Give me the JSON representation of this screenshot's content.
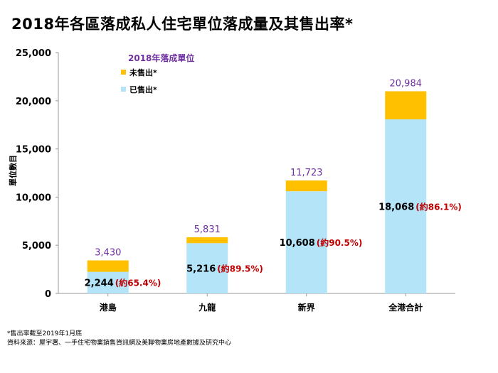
{
  "title": "2018年各區落成私人住宅單位落成量及其售出率*",
  "footnotes": [
    "*售出率截至2019年1月底",
    "資料來源：屋宇署、一手住宅物業銷售資訊網及美聯物業房地產數據及研究中心"
  ],
  "chart_data": {
    "type": "bar",
    "stacked": true,
    "title": "2018年各區落成私人住宅單位落成量及其售出率*",
    "legend_title": "2018年落成單位",
    "legend_position": "top-left",
    "categories": [
      "港島",
      "九龍",
      "新界",
      "全港合計"
    ],
    "series": [
      {
        "name": "已售出*",
        "color": "#B4E4F8",
        "values": [
          2244,
          5216,
          10608,
          18068
        ]
      },
      {
        "name": "未售出*",
        "color": "#FFC000",
        "values": [
          1186,
          615,
          1115,
          2916
        ]
      }
    ],
    "totals": [
      3430,
      5831,
      11723,
      20984
    ],
    "total_labels": [
      "3,430",
      "5,831",
      "11,723",
      "20,984"
    ],
    "sold_labels": [
      "2,244",
      "5,216",
      "10,608",
      "18,068"
    ],
    "pct_labels": [
      "(約65.4%)",
      "(約89.5%)",
      "(約90.5%)",
      "(約86.1%)"
    ],
    "ylabel": "單位數目",
    "xlabel": "",
    "ylim": [
      0,
      25000
    ],
    "yticks": [
      0,
      5000,
      10000,
      15000,
      20000,
      25000
    ],
    "ytick_labels": [
      "0",
      "5,000",
      "10,000",
      "15,000",
      "20,000",
      "25,000"
    ],
    "grid": false,
    "colors": {
      "total": "#7030A0",
      "pct": "#C00000"
    }
  }
}
